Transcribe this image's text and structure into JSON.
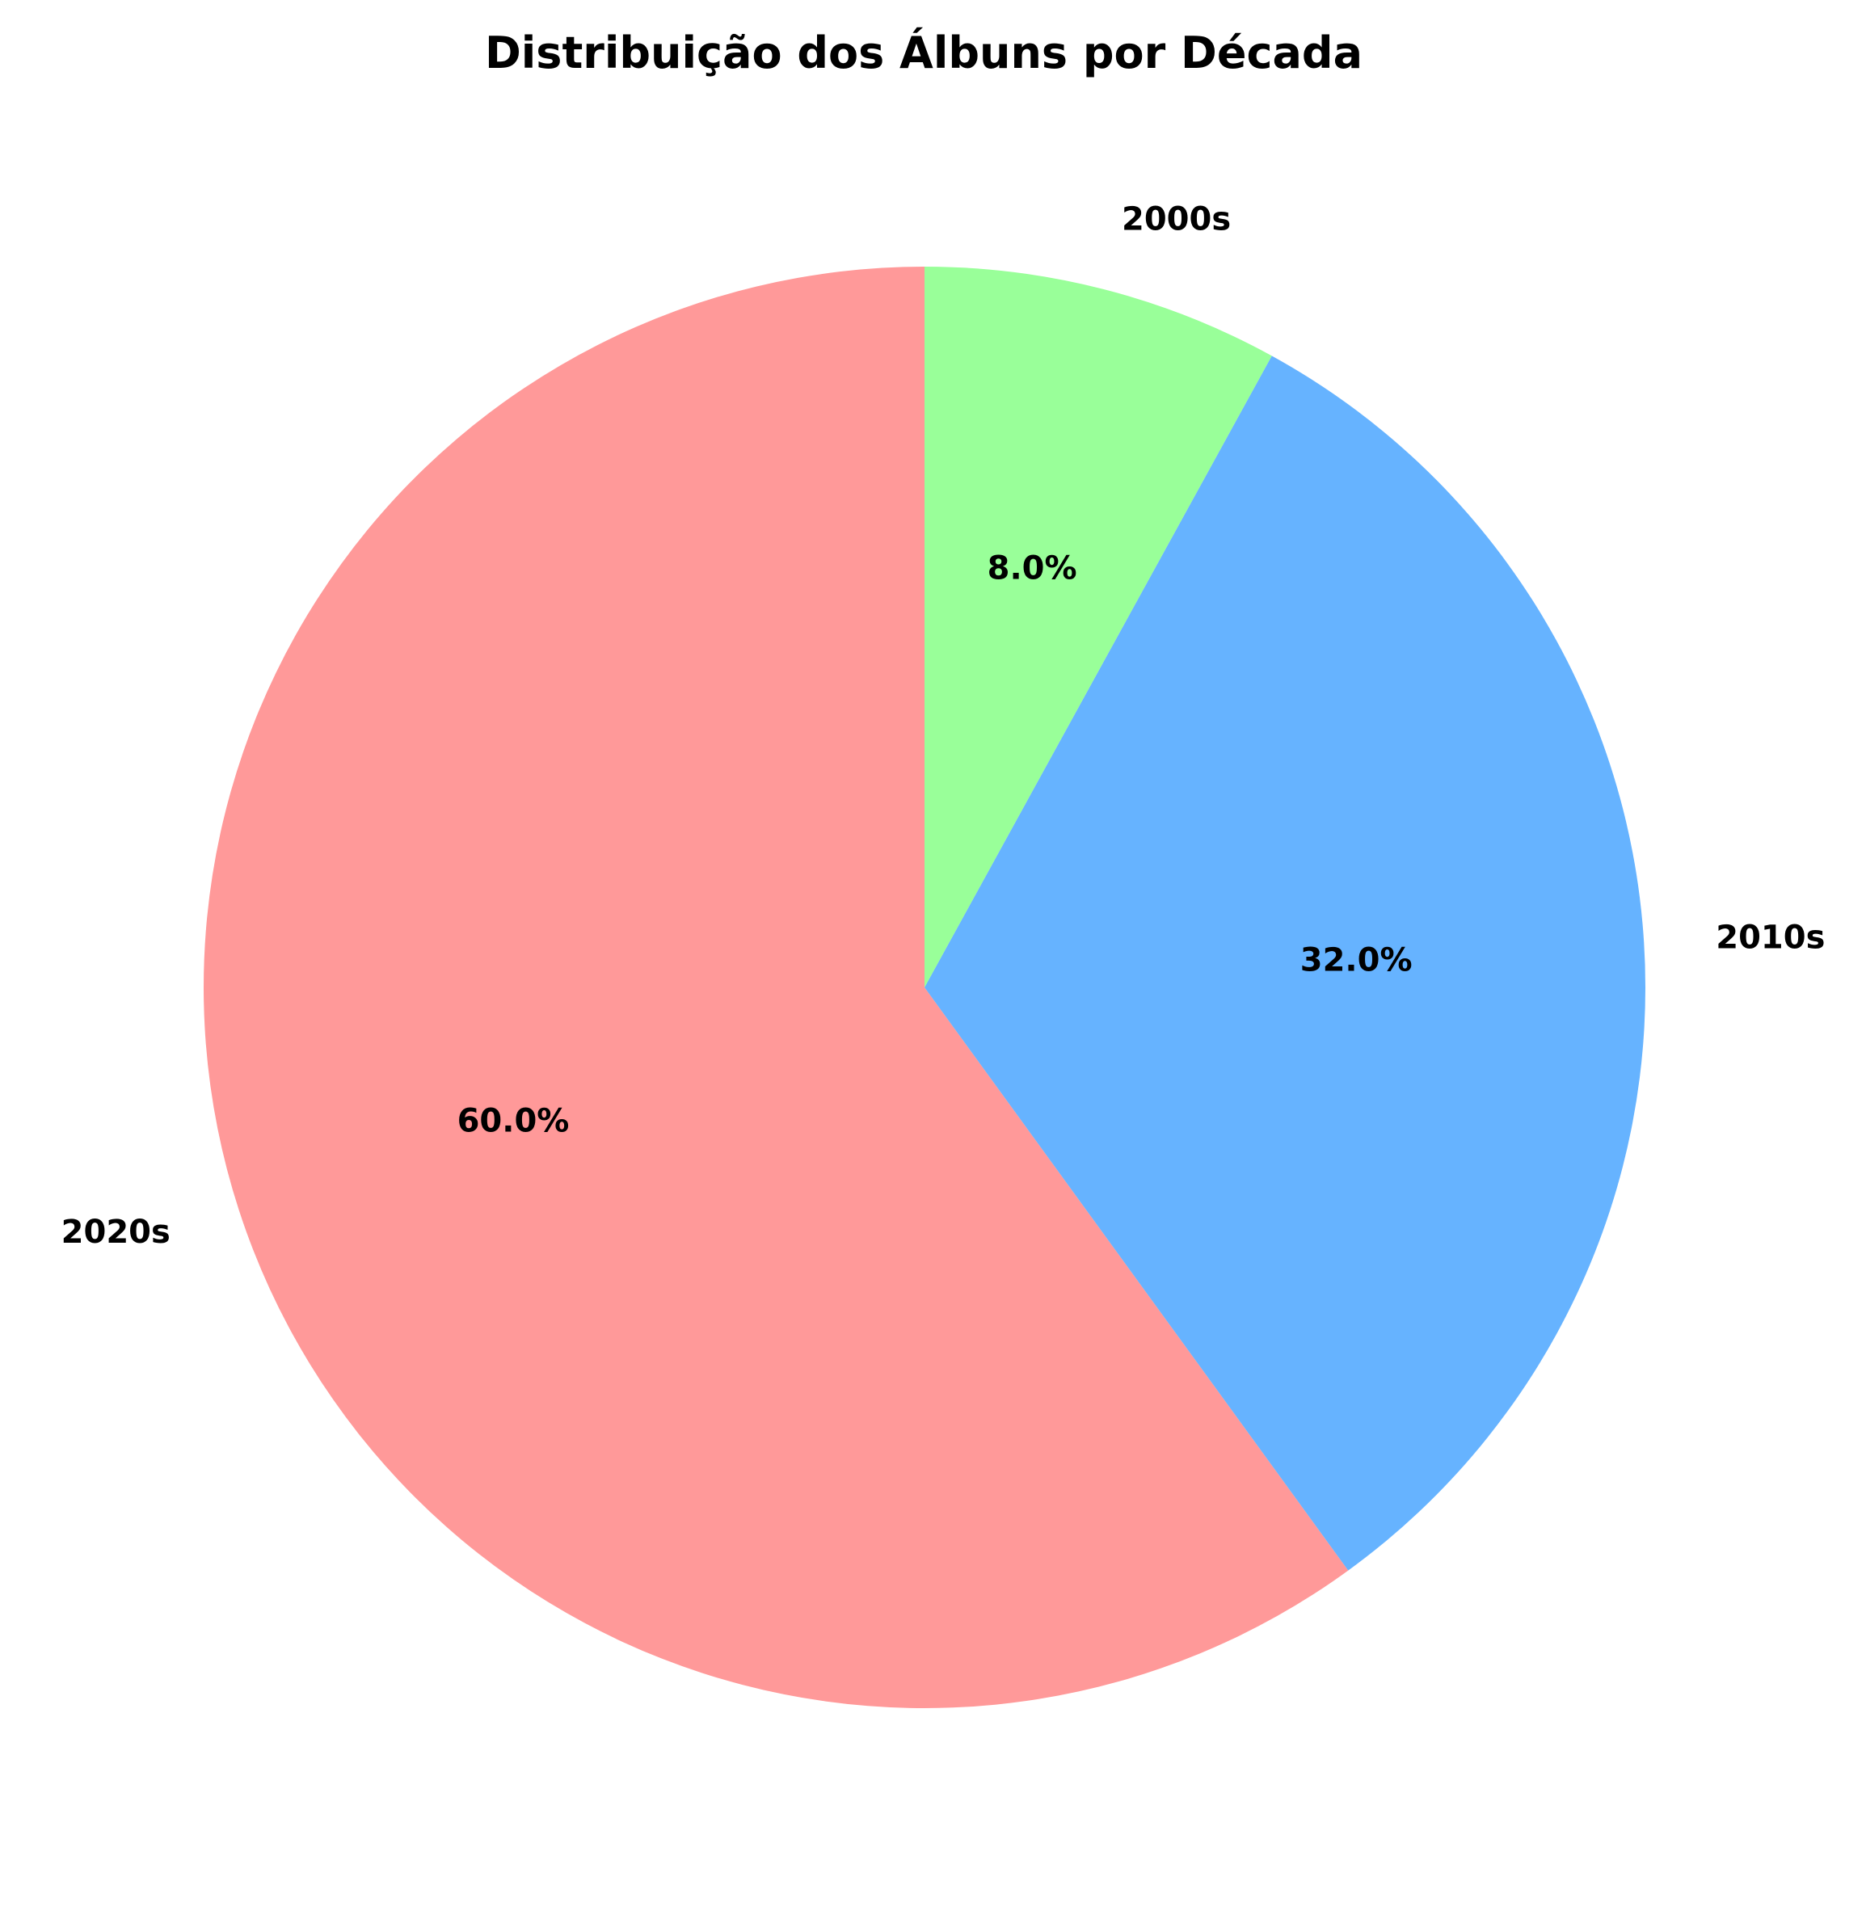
{
  "chart_data": {
    "type": "pie",
    "title": "Distribuição dos Álbuns por Década",
    "categories": [
      "2020s",
      "2010s",
      "2000s"
    ],
    "values": [
      60.0,
      32.0,
      8.0
    ],
    "percent_labels": [
      "60.0%",
      "32.0%",
      "8.0%"
    ],
    "colors": [
      "#FF9999",
      "#66B3FF",
      "#99FF99"
    ],
    "start_angle_degrees": 90,
    "direction": "counterclockwise",
    "legend": "none"
  }
}
